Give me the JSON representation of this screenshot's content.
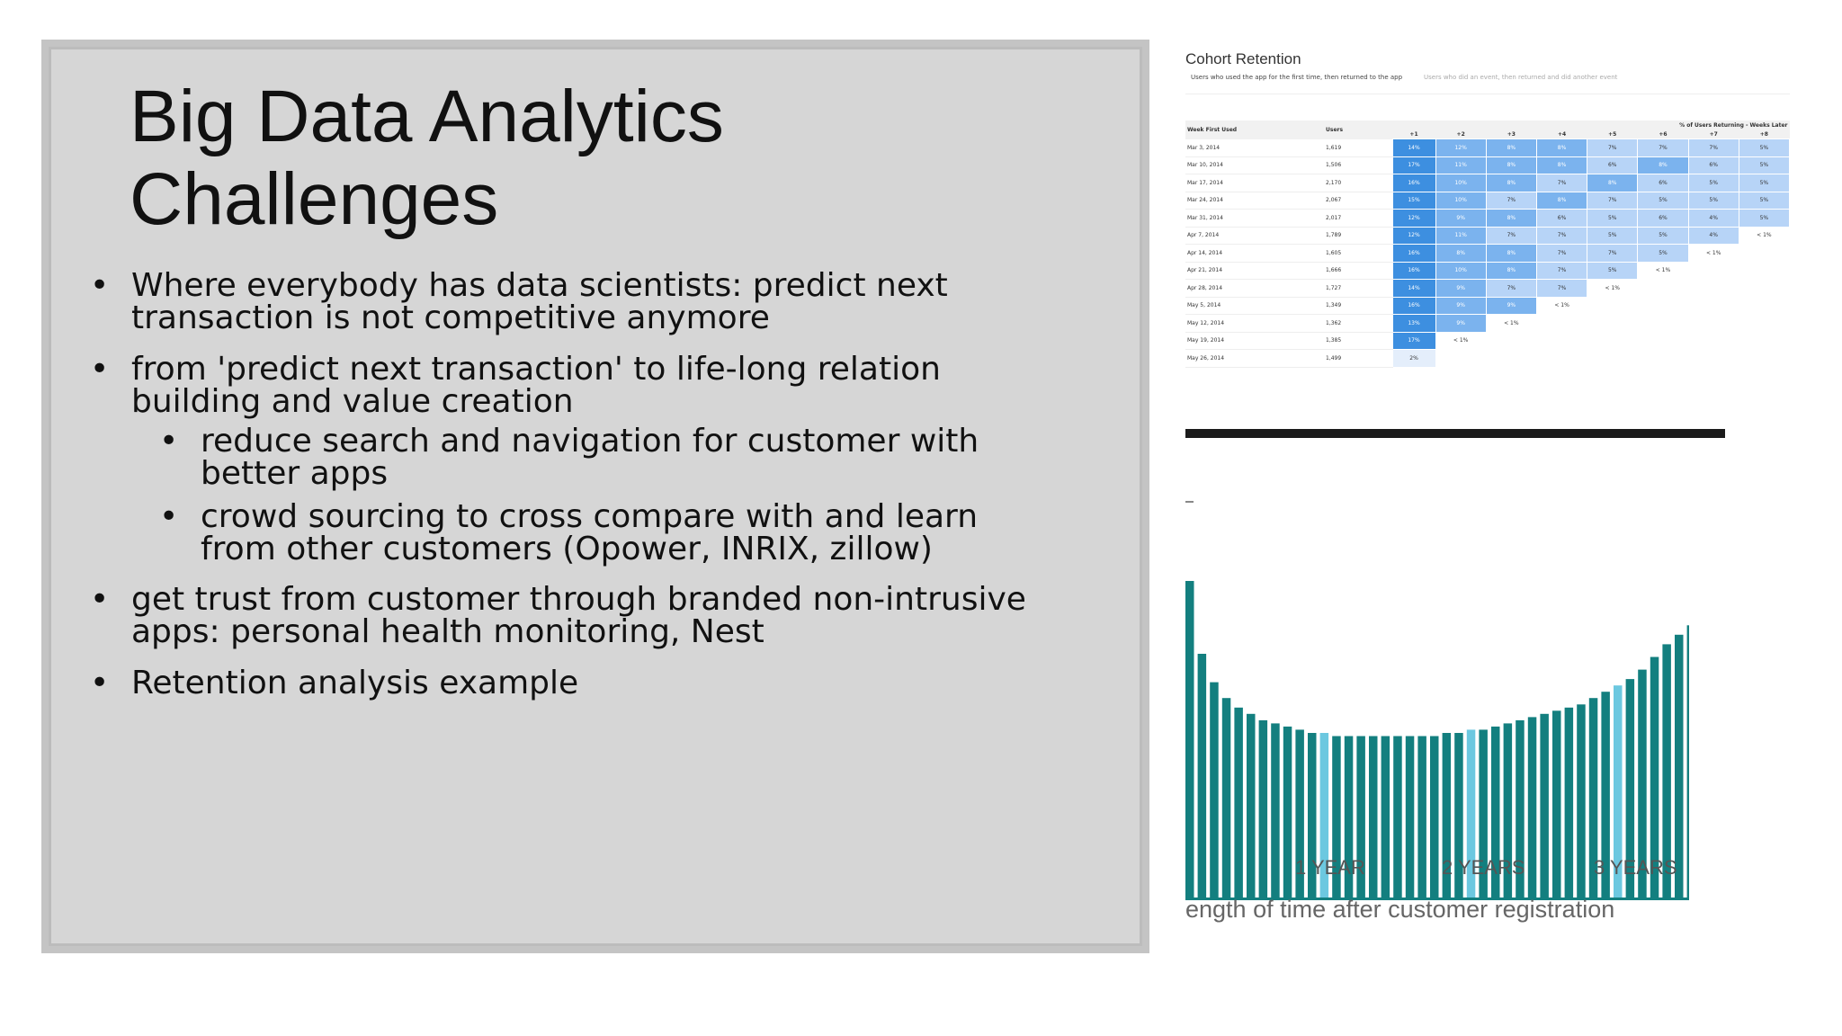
{
  "slide": {
    "title_line1": "Big Data Analytics",
    "title_line2": "Challenges",
    "bullets": {
      "b1_l1": "Where everybody has data scientists: predict next",
      "b1_l2": "transaction is not competitive anymore",
      "b2_l1": "from 'predict next transaction' to life-long relation",
      "b2_l2": "building and value creation",
      "s1_l1": "reduce search and navigation for customer with",
      "s1_l2": "better apps",
      "s2_l1": "crowd sourcing to cross compare with and learn",
      "s2_l2": "from other customers (Opower, INRIX, zillow)",
      "b3_l1": "get trust from customer through branded non-intrusive",
      "b3_l2": "apps: personal health monitoring, Nest",
      "b4": "Retention analysis example"
    }
  },
  "cohort": {
    "title": "Cohort Retention",
    "subtitle": "Users who used the app for the first time, then returned to the app",
    "subtitle2": "Users who did an event, then returned and did another event",
    "header": {
      "group": "% of Users Returning - Weeks Later",
      "week": "Week First Used",
      "users": "Users",
      "weeks": [
        "+1",
        "+2",
        "+3",
        "+4",
        "+5",
        "+6",
        "+7",
        "+8"
      ]
    },
    "rows": [
      {
        "week": "Mar 3, 2014",
        "users": "1,619",
        "cells": [
          "14%",
          "12%",
          "8%",
          "8%",
          "7%",
          "7%",
          "7%",
          "5%"
        ]
      },
      {
        "week": "Mar 10, 2014",
        "users": "1,506",
        "cells": [
          "17%",
          "11%",
          "8%",
          "8%",
          "6%",
          "8%",
          "6%",
          "5%"
        ]
      },
      {
        "week": "Mar 17, 2014",
        "users": "2,170",
        "cells": [
          "16%",
          "10%",
          "8%",
          "7%",
          "8%",
          "6%",
          "5%",
          "5%"
        ]
      },
      {
        "week": "Mar 24, 2014",
        "users": "2,067",
        "cells": [
          "15%",
          "10%",
          "7%",
          "8%",
          "7%",
          "5%",
          "5%",
          "5%"
        ]
      },
      {
        "week": "Mar 31, 2014",
        "users": "2,017",
        "cells": [
          "12%",
          "9%",
          "8%",
          "6%",
          "5%",
          "6%",
          "4%",
          "5%"
        ]
      },
      {
        "week": "Apr 7, 2014",
        "users": "1,789",
        "cells": [
          "12%",
          "11%",
          "7%",
          "7%",
          "5%",
          "5%",
          "4%",
          "< 1%"
        ]
      },
      {
        "week": "Apr 14, 2014",
        "users": "1,605",
        "cells": [
          "16%",
          "8%",
          "8%",
          "7%",
          "7%",
          "5%",
          "< 1%"
        ]
      },
      {
        "week": "Apr 21, 2014",
        "users": "1,666",
        "cells": [
          "16%",
          "10%",
          "8%",
          "7%",
          "5%",
          "< 1%"
        ]
      },
      {
        "week": "Apr 28, 2014",
        "users": "1,727",
        "cells": [
          "14%",
          "9%",
          "7%",
          "7%",
          "< 1%"
        ]
      },
      {
        "week": "May 5, 2014",
        "users": "1,349",
        "cells": [
          "16%",
          "9%",
          "9%",
          "< 1%"
        ]
      },
      {
        "week": "May 12, 2014",
        "users": "1,362",
        "cells": [
          "13%",
          "9%",
          "< 1%"
        ]
      },
      {
        "week": "May 19, 2014",
        "users": "1,385",
        "cells": [
          "17%",
          "< 1%"
        ]
      },
      {
        "week": "May 26, 2014",
        "users": "1,499",
        "cells": [
          "2%"
        ]
      }
    ]
  },
  "colors": {
    "bar": "#137f7f",
    "bar_highlight": "#6cc8e0",
    "cell_strong": "#3d8fe0",
    "cell_mid": "#7bb3ee",
    "cell_light": "#b7d4f7"
  },
  "chart_data": {
    "type": "bar",
    "xlabel": "ength of time after customer registration",
    "tick_labels": [
      "1 YEAR",
      "2 YEARS",
      "3 YEARS"
    ],
    "highlight_indices": [
      11,
      23,
      35
    ],
    "values": [
      100,
      77,
      68,
      63,
      60,
      58,
      56,
      55,
      54,
      53,
      52,
      52,
      51,
      51,
      51,
      51,
      51,
      51,
      51,
      51,
      51,
      52,
      52,
      53,
      53,
      54,
      55,
      56,
      57,
      58,
      59,
      60,
      61,
      63,
      65,
      67,
      69,
      72,
      76,
      80,
      83,
      86
    ]
  }
}
